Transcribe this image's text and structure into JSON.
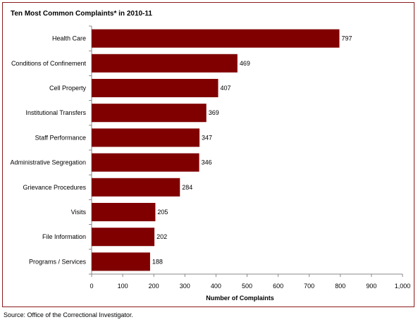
{
  "chart_data": {
    "type": "bar",
    "orientation": "horizontal",
    "title": "Ten Most Common Complaints* in 2010-11",
    "xlabel": "Number of Complaints",
    "ylabel": "",
    "categories": [
      "Health Care",
      "Conditions of Confinement",
      "Cell Property",
      "Institutional Transfers",
      "Staff Performance",
      "Administrative Segregation",
      "Grievance Procedures",
      "Visits",
      "File Information",
      "Programs / Services"
    ],
    "values": [
      797,
      469,
      407,
      369,
      347,
      346,
      284,
      205,
      202,
      188
    ],
    "value_labels": [
      "797",
      "469",
      "407",
      "369",
      "347",
      "346",
      "284",
      "205",
      "202",
      "188"
    ],
    "xlim": [
      0,
      1000
    ],
    "xticks": [
      "0",
      "100",
      "200",
      "300",
      "400",
      "500",
      "600",
      "700",
      "800",
      "900",
      "1,000"
    ],
    "bar_color": "#800000",
    "grid": false,
    "legend": "none"
  },
  "source": "Source:  Office of the Correctional Investigator."
}
